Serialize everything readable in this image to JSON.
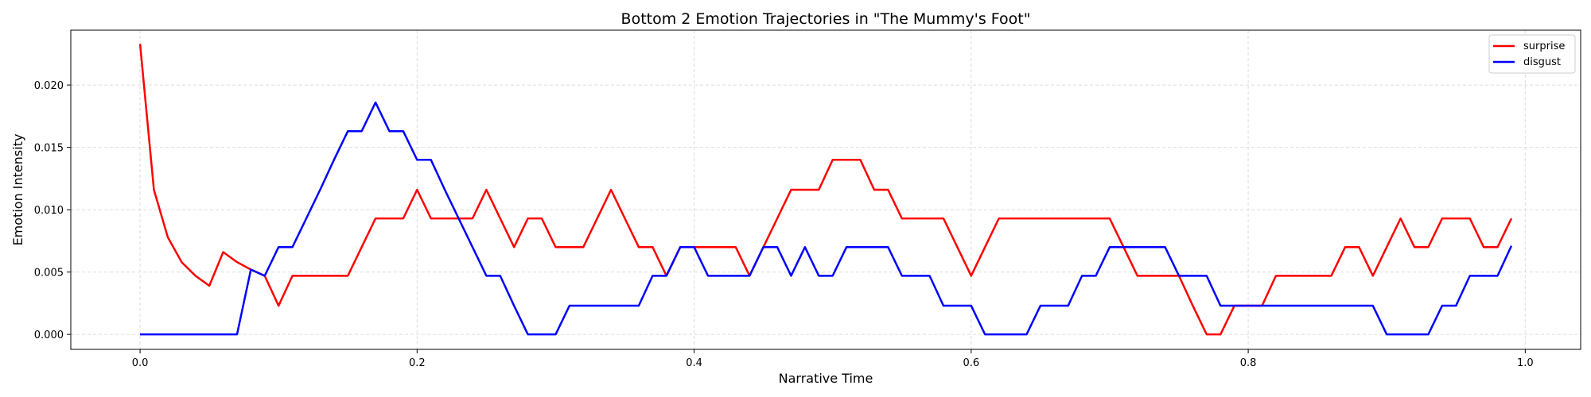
{
  "chart_data": {
    "type": "line",
    "title": "Bottom 2 Emotion Trajectories in \"The Mummy's Foot\"",
    "xlabel": "Narrative Time",
    "ylabel": "Emotion Intensity",
    "xlim": [
      -0.05,
      1.04
    ],
    "ylim": [
      -0.0012,
      0.0244
    ],
    "xticks": [
      0.0,
      0.2,
      0.4,
      0.6,
      0.8,
      1.0
    ],
    "xtick_labels": [
      "0.0",
      "0.2",
      "0.4",
      "0.6",
      "0.8",
      "1.0"
    ],
    "yticks": [
      0.0,
      0.005,
      0.01,
      0.015,
      0.02
    ],
    "ytick_labels": [
      "0.000",
      "0.005",
      "0.010",
      "0.015",
      "0.020"
    ],
    "grid": true,
    "legend_position": "top-right",
    "x": [
      0.0,
      0.01,
      0.02,
      0.03,
      0.04,
      0.05,
      0.06,
      0.07,
      0.08,
      0.09,
      0.1,
      0.11,
      0.12,
      0.13,
      0.14,
      0.15,
      0.16,
      0.17,
      0.18,
      0.19,
      0.2,
      0.21,
      0.22,
      0.23,
      0.24,
      0.25,
      0.26,
      0.27,
      0.28,
      0.29,
      0.3,
      0.31,
      0.32,
      0.33,
      0.34,
      0.35,
      0.36,
      0.37,
      0.38,
      0.39,
      0.4,
      0.41,
      0.42,
      0.43,
      0.44,
      0.45,
      0.46,
      0.47,
      0.48,
      0.49,
      0.5,
      0.51,
      0.52,
      0.53,
      0.54,
      0.55,
      0.56,
      0.57,
      0.58,
      0.59,
      0.6,
      0.61,
      0.62,
      0.63,
      0.64,
      0.65,
      0.66,
      0.67,
      0.68,
      0.69,
      0.7,
      0.71,
      0.72,
      0.73,
      0.74,
      0.75,
      0.76,
      0.77,
      0.78,
      0.79,
      0.8,
      0.81,
      0.82,
      0.83,
      0.84,
      0.85,
      0.86,
      0.87,
      0.88,
      0.89,
      0.9,
      0.91,
      0.92,
      0.93,
      0.94,
      0.95,
      0.96,
      0.97,
      0.98,
      0.99
    ],
    "series": [
      {
        "name": "surprise",
        "color": "#ff0000",
        "values": [
          0.0233,
          0.0116,
          0.0078,
          0.0058,
          0.0047,
          0.0039,
          0.0066,
          0.0058,
          0.0052,
          0.0047,
          0.0023,
          0.0047,
          0.0047,
          0.0047,
          0.0047,
          0.0047,
          0.007,
          0.0093,
          0.0093,
          0.0093,
          0.0116,
          0.0093,
          0.0093,
          0.0093,
          0.0093,
          0.0116,
          0.0093,
          0.007,
          0.0093,
          0.0093,
          0.007,
          0.007,
          0.007,
          0.0093,
          0.0116,
          0.0093,
          0.007,
          0.007,
          0.0047,
          0.007,
          0.007,
          0.007,
          0.007,
          0.007,
          0.0047,
          0.007,
          0.0093,
          0.0116,
          0.0116,
          0.0116,
          0.014,
          0.014,
          0.014,
          0.0116,
          0.0116,
          0.0093,
          0.0093,
          0.0093,
          0.0093,
          0.007,
          0.0047,
          0.007,
          0.0093,
          0.0093,
          0.0093,
          0.0093,
          0.0093,
          0.0093,
          0.0093,
          0.0093,
          0.0093,
          0.007,
          0.0047,
          0.0047,
          0.0047,
          0.0047,
          0.0023,
          0.0,
          0.0,
          0.0023,
          0.0023,
          0.0023,
          0.0047,
          0.0047,
          0.0047,
          0.0047,
          0.0047,
          0.007,
          0.007,
          0.0047,
          0.007,
          0.0093,
          0.007,
          0.007,
          0.0093,
          0.0093,
          0.0093,
          0.007,
          0.007,
          0.0093
        ]
      },
      {
        "name": "disgust",
        "color": "#0000ff",
        "values": [
          0.0,
          0.0,
          0.0,
          0.0,
          0.0,
          0.0,
          0.0,
          0.0,
          0.0052,
          0.0047,
          0.007,
          0.007,
          0.0093,
          0.0116,
          0.014,
          0.0163,
          0.0163,
          0.0186,
          0.0163,
          0.0163,
          0.014,
          0.014,
          0.0116,
          0.0093,
          0.007,
          0.0047,
          0.0047,
          0.0023,
          0.0,
          0.0,
          0.0,
          0.0023,
          0.0023,
          0.0023,
          0.0023,
          0.0023,
          0.0023,
          0.0047,
          0.0047,
          0.007,
          0.007,
          0.0047,
          0.0047,
          0.0047,
          0.0047,
          0.007,
          0.007,
          0.0047,
          0.007,
          0.0047,
          0.0047,
          0.007,
          0.007,
          0.007,
          0.007,
          0.0047,
          0.0047,
          0.0047,
          0.0023,
          0.0023,
          0.0023,
          0.0,
          0.0,
          0.0,
          0.0,
          0.0023,
          0.0023,
          0.0023,
          0.0047,
          0.0047,
          0.007,
          0.007,
          0.007,
          0.007,
          0.007,
          0.0047,
          0.0047,
          0.0047,
          0.0023,
          0.0023,
          0.0023,
          0.0023,
          0.0023,
          0.0023,
          0.0023,
          0.0023,
          0.0023,
          0.0023,
          0.0023,
          0.0023,
          0.0,
          0.0,
          0.0,
          0.0,
          0.0023,
          0.0023,
          0.0047,
          0.0047,
          0.0047,
          0.0071
        ]
      }
    ]
  }
}
